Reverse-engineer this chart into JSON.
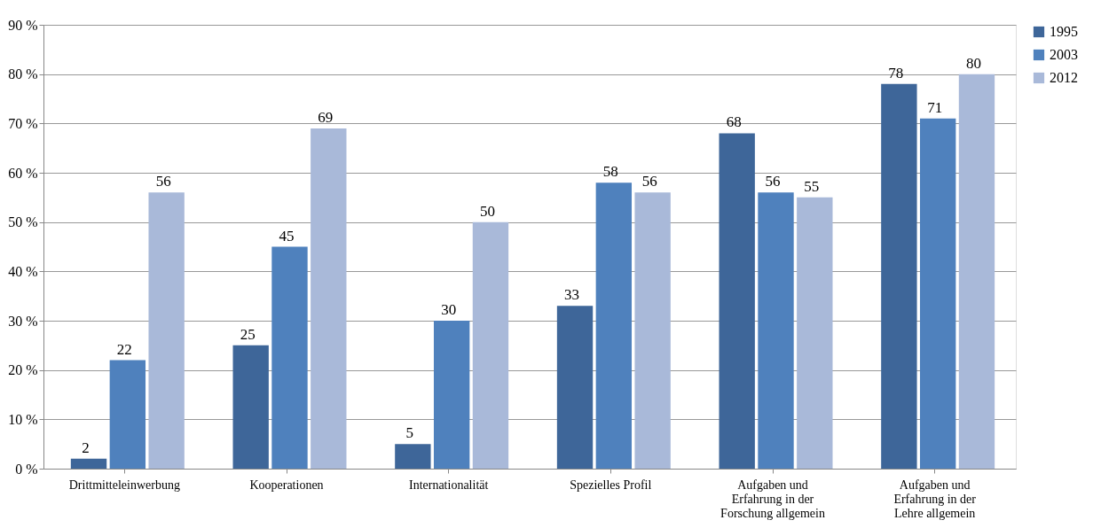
{
  "chart_data": {
    "type": "bar",
    "categories": [
      "Drittmitteleinwerbung",
      "Kooperationen",
      "Internationalität",
      "Spezielles Profil",
      "Aufgaben und Erfahrung in der Forschung allgemein",
      "Aufgaben und Erfahrung in der Lehre allgemein"
    ],
    "series": [
      {
        "name": "1995",
        "color": "#3e6699",
        "values": [
          2,
          25,
          5,
          33,
          68,
          78
        ]
      },
      {
        "name": "2003",
        "color": "#4f81bd",
        "values": [
          22,
          45,
          30,
          58,
          56,
          71
        ]
      },
      {
        "name": "2012",
        "color": "#a9b9d9",
        "values": [
          56,
          69,
          50,
          56,
          55,
          80
        ]
      }
    ],
    "ylim": [
      0,
      90
    ],
    "yticks": [
      {
        "value": 0,
        "label": "0 %"
      },
      {
        "value": 10,
        "label": "10 %"
      },
      {
        "value": 20,
        "label": "20 %"
      },
      {
        "value": 30,
        "label": "30 %"
      },
      {
        "value": 40,
        "label": "40 %"
      },
      {
        "value": 50,
        "label": "50 %"
      },
      {
        "value": 60,
        "label": "60 %"
      },
      {
        "value": 70,
        "label": "70 %"
      },
      {
        "value": 80,
        "label": "80 %"
      },
      {
        "value": 90,
        "label": "90 %"
      }
    ],
    "grid": "y",
    "legend": "right",
    "data_labels": true
  }
}
